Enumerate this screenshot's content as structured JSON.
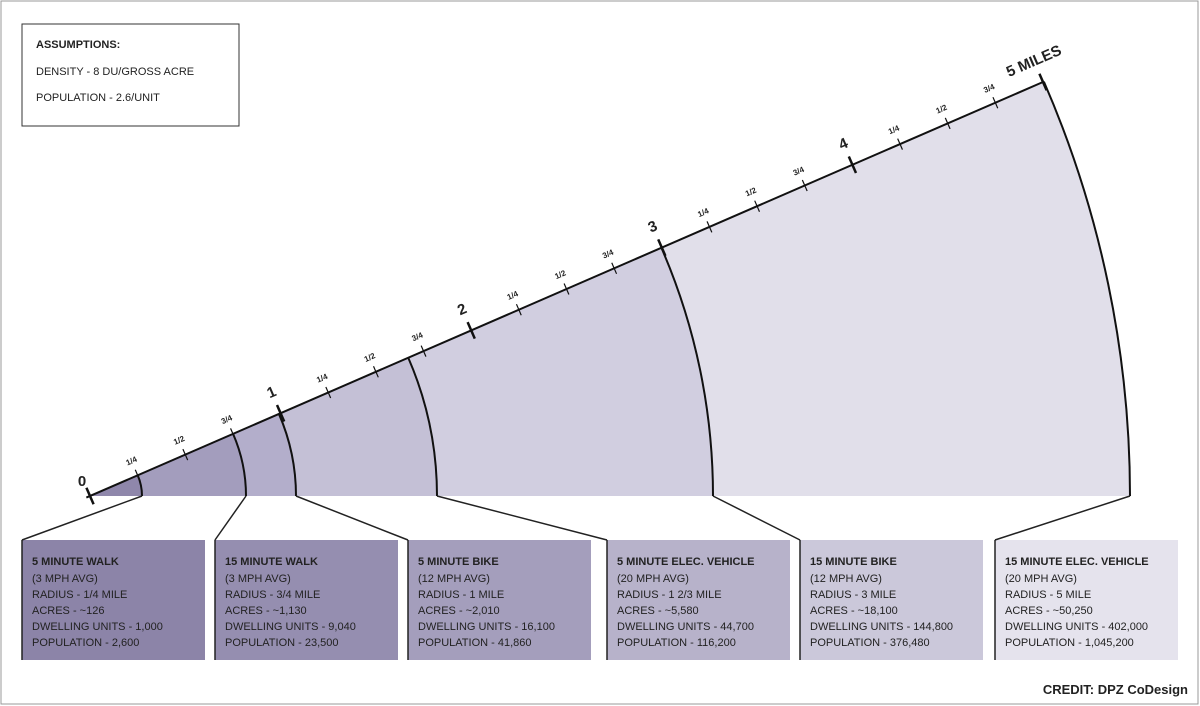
{
  "assumptions": {
    "title": "ASSUMPTIONS:",
    "items": [
      "DENSITY - 8 DU/GROSS ACRE",
      "POPULATION - 2.6/UNIT"
    ]
  },
  "scale": {
    "labels": [
      "0",
      "1/4",
      "1/2",
      "3/4",
      "1",
      "1/4",
      "1/2",
      "3/4",
      "2",
      "1/4",
      "1/2",
      "3/4",
      "3",
      "1/4",
      "1/2",
      "3/4",
      "4",
      "1/4",
      "1/2",
      "3/4",
      "5 MILES"
    ]
  },
  "panels": [
    {
      "title": "5 MINUTE WALK",
      "lines": [
        "(3 MPH AVG)",
        "RADIUS - 1/4 MILE",
        "ACRES - ~126",
        "DWELLING UNITS - 1,000",
        "POPULATION - 2,600"
      ]
    },
    {
      "title": "15 MINUTE WALK",
      "lines": [
        "(3 MPH AVG)",
        "RADIUS - 3/4 MILE",
        "ACRES - ~1,130",
        "DWELLING UNITS - 9,040",
        "POPULATION - 23,500"
      ]
    },
    {
      "title": "5 MINUTE BIKE",
      "lines": [
        "(12 MPH AVG)",
        "RADIUS - 1 MILE",
        "ACRES - ~2,010",
        "DWELLING UNITS - 16,100",
        "POPULATION - 41,860"
      ]
    },
    {
      "title": "5 MINUTE ELEC. VEHICLE",
      "lines": [
        "(20 MPH AVG)",
        "RADIUS - 1 2/3 MILE",
        "ACRES - ~5,580",
        "DWELLING UNITS - 44,700",
        "POPULATION - 116,200"
      ]
    },
    {
      "title": "15 MINUTE BIKE",
      "lines": [
        "(12 MPH AVG)",
        "RADIUS - 3 MILE",
        "ACRES - ~18,100",
        "DWELLING UNITS - 144,800",
        "POPULATION - 376,480"
      ]
    },
    {
      "title": "15 MINUTE ELEC. VEHICLE",
      "lines": [
        "(20 MPH AVG)",
        "RADIUS - 5 MILE",
        "ACRES - ~50,250",
        "DWELLING UNITS - 402,000",
        "POPULATION - 1,045,200"
      ]
    }
  ],
  "credit": "CREDIT: DPZ CoDesign"
}
